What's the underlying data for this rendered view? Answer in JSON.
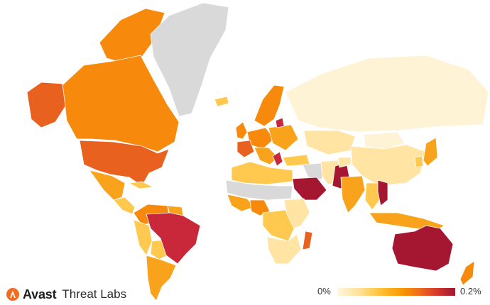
{
  "legend": {
    "min_label": "0%",
    "max_label": "0.2%",
    "min_value": 0,
    "max_value": 0.2,
    "unit": "%"
  },
  "branding": {
    "name": "Avast",
    "subtitle": "Threat Labs"
  },
  "colors": {
    "no_data": "#d9d9d9",
    "scale": [
      "#fff3d6",
      "#ffe4a3",
      "#ffc94f",
      "#f9a31c",
      "#f78a0c",
      "#e8611e",
      "#c9283b",
      "#a51731"
    ],
    "brand_orange": "#f26b21"
  },
  "map": {
    "regions": [
      {
        "name": "canada-arctic",
        "level": 4
      },
      {
        "name": "canada",
        "level": 4
      },
      {
        "name": "alaska",
        "level": 5
      },
      {
        "name": "greenland",
        "level": -1
      },
      {
        "name": "usa",
        "level": 5
      },
      {
        "name": "mexico",
        "level": 3
      },
      {
        "name": "central-america",
        "level": 2
      },
      {
        "name": "cuba",
        "level": 2
      },
      {
        "name": "colombia-venezuela",
        "level": 4
      },
      {
        "name": "guyanas",
        "level": 3
      },
      {
        "name": "peru-ecuador",
        "level": 2
      },
      {
        "name": "bolivia",
        "level": 2
      },
      {
        "name": "brazil",
        "level": 6
      },
      {
        "name": "southern-cone",
        "level": 3
      },
      {
        "name": "iceland",
        "level": 2
      },
      {
        "name": "scandinavia",
        "level": 4
      },
      {
        "name": "uk-ireland",
        "level": 4
      },
      {
        "name": "western-europe",
        "level": 4
      },
      {
        "name": "france",
        "level": 5
      },
      {
        "name": "italy-balkans",
        "level": 3
      },
      {
        "name": "eastern-europe",
        "level": 3
      },
      {
        "name": "baltic",
        "level": 6
      },
      {
        "name": "greece",
        "level": 6
      },
      {
        "name": "russia",
        "level": 0
      },
      {
        "name": "kazakhstan",
        "level": 1
      },
      {
        "name": "mongolia",
        "level": 0
      },
      {
        "name": "china",
        "level": 1
      },
      {
        "name": "korea",
        "level": 2
      },
      {
        "name": "japan",
        "level": 3
      },
      {
        "name": "turkey",
        "level": 2
      },
      {
        "name": "iran",
        "level": 1
      },
      {
        "name": "iraq-syria",
        "level": -1
      },
      {
        "name": "saudi-arabia",
        "level": 7
      },
      {
        "name": "pakistan",
        "level": 7
      },
      {
        "name": "afghanistan",
        "level": 1
      },
      {
        "name": "india",
        "level": 3
      },
      {
        "name": "indochina",
        "level": 2
      },
      {
        "name": "vietnam",
        "level": 7
      },
      {
        "name": "maritime-se-asia",
        "level": 3
      },
      {
        "name": "north-africa",
        "level": 2
      },
      {
        "name": "sahel",
        "level": -1
      },
      {
        "name": "west-africa",
        "level": 3
      },
      {
        "name": "nigeria",
        "level": 4
      },
      {
        "name": "central-africa",
        "level": 2
      },
      {
        "name": "east-africa",
        "level": 1
      },
      {
        "name": "southern-africa",
        "level": 1
      },
      {
        "name": "madagascar",
        "level": 5
      },
      {
        "name": "australia",
        "level": 7
      },
      {
        "name": "new-zealand",
        "level": 4
      }
    ]
  }
}
